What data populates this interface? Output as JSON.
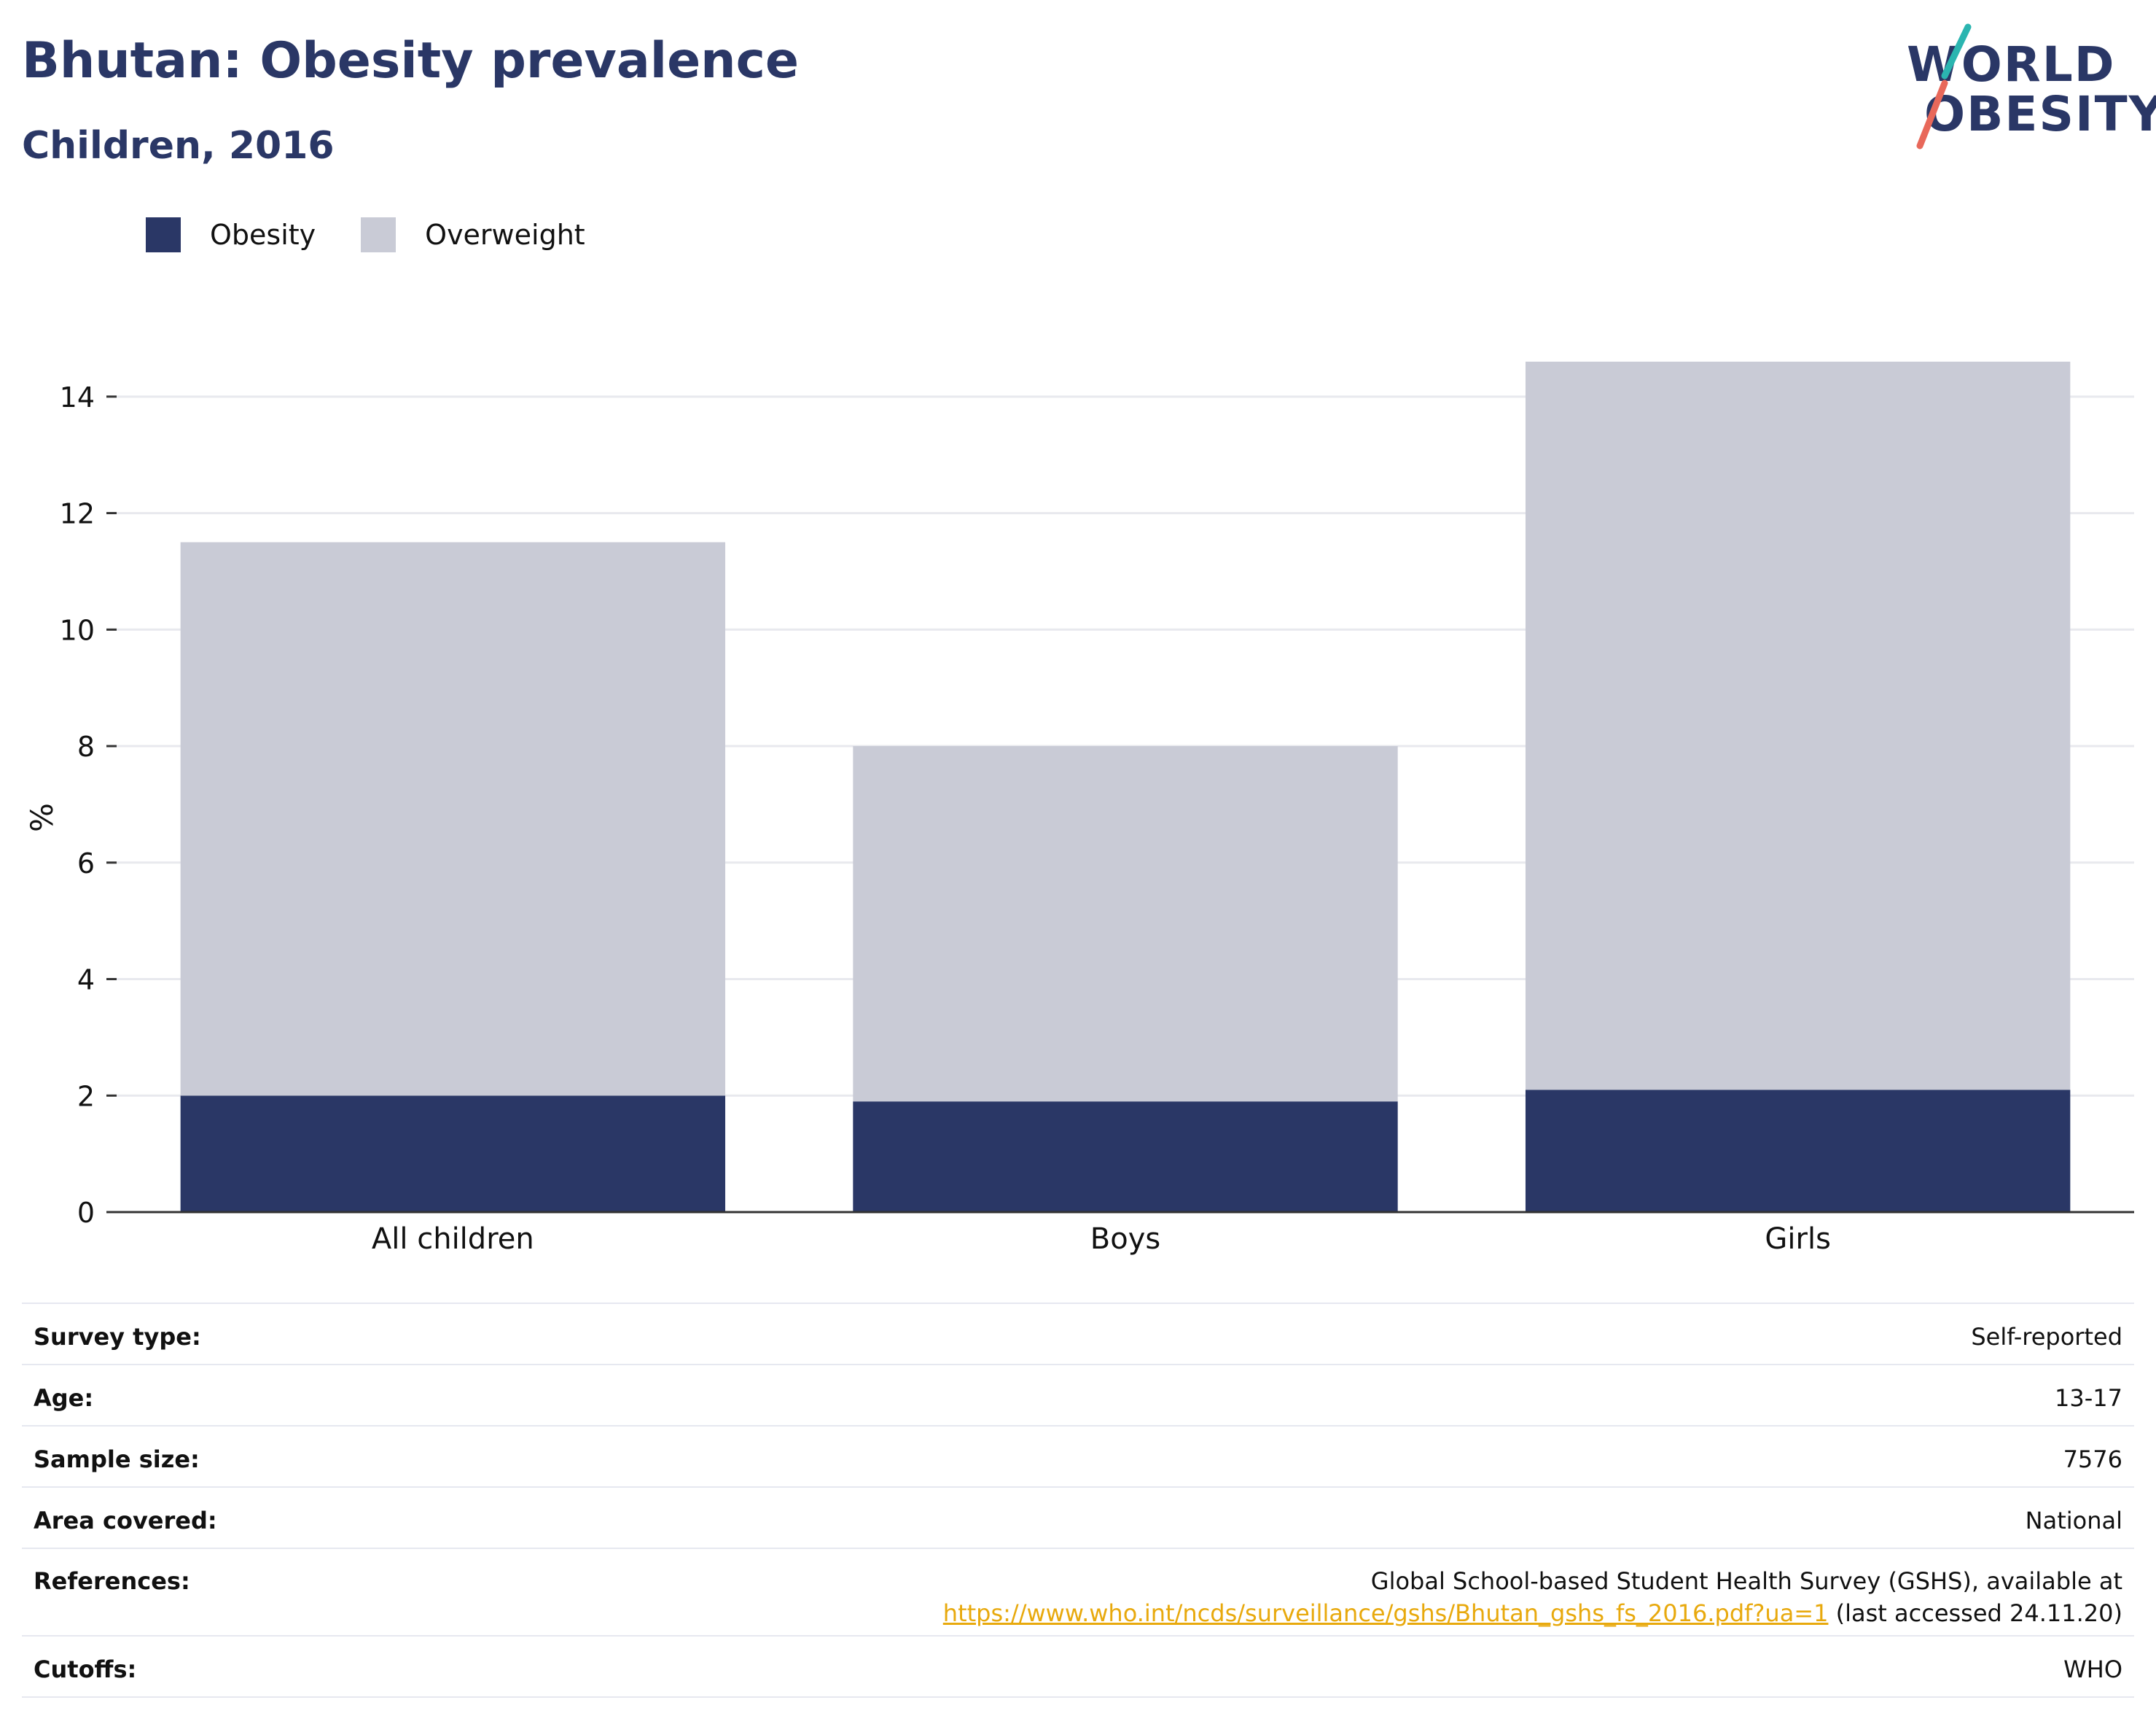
{
  "header": {
    "title": "Bhutan: Obesity prevalence",
    "subtitle": "Children, 2016",
    "logo_line1": "WORLD",
    "logo_line2": "OBESITY"
  },
  "colors": {
    "obesity": "#2a3766",
    "overweight": "#c9cbd6",
    "link": "#e8a90d",
    "logo_teal": "#2bb5b0",
    "logo_coral": "#e8685a"
  },
  "chart_data": {
    "type": "bar",
    "stacked": true,
    "categories": [
      "All children",
      "Boys",
      "Girls"
    ],
    "series": [
      {
        "name": "Obesity",
        "values": [
          2.0,
          1.9,
          2.1
        ]
      },
      {
        "name": "Overweight",
        "values": [
          9.5,
          6.1,
          12.5
        ]
      }
    ],
    "ylabel": "%",
    "ylim": [
      0,
      15.3
    ],
    "yticks": [
      0,
      2,
      4,
      6,
      8,
      10,
      12,
      14
    ],
    "grid": true,
    "legend_position": "top-left"
  },
  "info": {
    "survey_type": {
      "label": "Survey type:",
      "value": "Self-reported"
    },
    "age": {
      "label": "Age:",
      "value": "13-17"
    },
    "sample_size": {
      "label": "Sample size:",
      "value": "7576"
    },
    "area": {
      "label": "Area covered:",
      "value": "National"
    },
    "references": {
      "label": "References:",
      "text1": "Global School-based Student Health Survey (GSHS), available at",
      "link": "https://www.who.int/ncds/surveillance/gshs/Bhutan_gshs_fs_2016.pdf?ua=1",
      "text2": " (last accessed 24.11.20)"
    },
    "cutoffs": {
      "label": "Cutoffs:",
      "value": "WHO"
    }
  }
}
